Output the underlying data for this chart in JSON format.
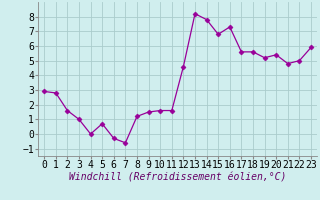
{
  "x": [
    0,
    1,
    2,
    3,
    4,
    5,
    6,
    7,
    8,
    9,
    10,
    11,
    12,
    13,
    14,
    15,
    16,
    17,
    18,
    19,
    20,
    21,
    22,
    23
  ],
  "y": [
    2.9,
    2.8,
    1.6,
    1.0,
    0.0,
    0.7,
    -0.3,
    -0.6,
    1.2,
    1.5,
    1.6,
    1.6,
    4.6,
    8.2,
    7.8,
    6.8,
    7.3,
    5.6,
    5.6,
    5.2,
    5.4,
    4.8,
    5.0,
    5.9
  ],
  "line_color": "#990099",
  "marker": "D",
  "marker_size": 2.5,
  "bg_color": "#d0eeee",
  "grid_color": "#aacccc",
  "xlabel": "Windchill (Refroidissement éolien,°C)",
  "xlabel_fontsize": 7,
  "tick_fontsize": 7,
  "xlim": [
    -0.5,
    23.5
  ],
  "ylim": [
    -1.5,
    9.0
  ],
  "yticks": [
    -1,
    0,
    1,
    2,
    3,
    4,
    5,
    6,
    7,
    8
  ],
  "xticks": [
    0,
    1,
    2,
    3,
    4,
    5,
    6,
    7,
    8,
    9,
    10,
    11,
    12,
    13,
    14,
    15,
    16,
    17,
    18,
    19,
    20,
    21,
    22,
    23
  ]
}
